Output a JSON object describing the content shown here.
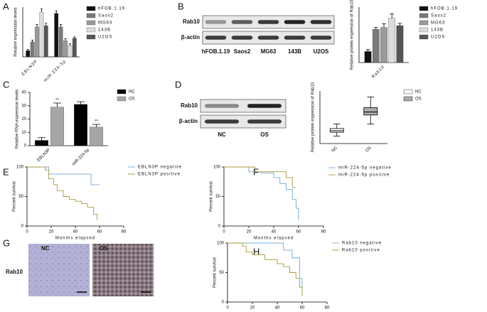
{
  "chart_data": [
    {
      "type": "bar",
      "label": "A",
      "y_label": "Relative expression levels",
      "categories": [
        "EBLN3P",
        "miR-224-5p"
      ],
      "ylim": [
        0,
        4
      ],
      "series": [
        {
          "name": "hFOB.1.19",
          "color": "#111111",
          "values": [
            0.5,
            3.5
          ],
          "errors": [
            0.1,
            0.2
          ]
        },
        {
          "name": "Saos2",
          "color": "#7a7a7a",
          "values": [
            1.2,
            2.4
          ],
          "errors": [
            0.15,
            0.2
          ]
        },
        {
          "name": "MG63",
          "color": "#9a9a9a",
          "values": [
            2.4,
            1.3
          ],
          "errors": [
            0.2,
            0.15
          ]
        },
        {
          "name": "143B",
          "color": "#dcdcdc",
          "values": [
            3.6,
            0.9
          ],
          "errors": [
            0.25,
            0.15
          ]
        },
        {
          "name": "U2OS",
          "color": "#555555",
          "values": [
            2.5,
            1.5
          ],
          "errors": [
            0.2,
            0.1
          ]
        }
      ]
    },
    {
      "type": "bar",
      "label": "B",
      "y_label": "Relative protein expression of Rab10",
      "categories": [
        "Rab10"
      ],
      "ylim": [
        0,
        1.5
      ],
      "series": [
        {
          "name": "hFOB.1.19",
          "color": "#111111",
          "values": [
            0.3
          ],
          "errors": [
            0.05
          ]
        },
        {
          "name": "Saos2",
          "color": "#7a7a7a",
          "values": [
            0.9
          ],
          "errors": [
            0.05
          ]
        },
        {
          "name": "MG63",
          "color": "#9a9a9a",
          "values": [
            0.95
          ],
          "errors": [
            0.1
          ]
        },
        {
          "name": "143B",
          "color": "#dcdcdc",
          "values": [
            1.2
          ],
          "errors": [
            0.12
          ]
        },
        {
          "name": "U2OS",
          "color": "#555555",
          "values": [
            1.0
          ],
          "errors": [
            0.06
          ]
        }
      ]
    },
    {
      "type": "bar",
      "label": "C",
      "y_label": "Relative RNA expression levels",
      "categories": [
        "EBLN3P",
        "miR-224-5p"
      ],
      "ylim": [
        0,
        40
      ],
      "yticks": [
        0,
        10,
        20,
        30,
        40
      ],
      "series": [
        {
          "name": "NC",
          "color": "#000000",
          "values": [
            4,
            31
          ],
          "errors": [
            2,
            2
          ]
        },
        {
          "name": "OS",
          "color": "#a6a6a6",
          "values": [
            29,
            14
          ],
          "errors": [
            3,
            2
          ],
          "sig_labels": [
            "**",
            "**"
          ]
        }
      ]
    },
    {
      "type": "box",
      "label": "D",
      "y_label": "Relative protein expression of Rab10",
      "categories": [
        "NC",
        "OS"
      ],
      "ylim": [
        0,
        3.5
      ],
      "colors": [
        "#ffffff",
        "#aaaaaa"
      ],
      "boxes": [
        {
          "min": 0.5,
          "q1": 0.75,
          "median": 0.85,
          "q3": 1.0,
          "max": 1.3
        },
        {
          "min": 1.3,
          "q1": 1.9,
          "median": 2.1,
          "q3": 2.4,
          "max": 3.1
        }
      ]
    },
    {
      "type": "km",
      "label": "E",
      "x_label": "Months elapsed",
      "y_label": "Percent survival",
      "xlim": [
        0,
        80
      ],
      "ylim": [
        0,
        100
      ],
      "xticks": [
        0,
        20,
        40,
        60,
        80
      ],
      "yticks": [
        0,
        50,
        100
      ],
      "series": [
        {
          "name": "EBLN3P negative",
          "color": "#6fa8dc",
          "x": [
            0,
            18,
            53,
            60
          ],
          "values": [
            100,
            88,
            70,
            70
          ]
        },
        {
          "name": "EBLN3P positive",
          "color": "#a89a3a",
          "x": [
            0,
            15,
            18,
            22,
            25,
            30,
            35,
            40,
            45,
            50,
            55,
            58
          ],
          "values": [
            100,
            95,
            80,
            70,
            60,
            50,
            45,
            42,
            38,
            32,
            20,
            10
          ]
        }
      ]
    },
    {
      "type": "km",
      "label": "F",
      "x_label": "Months elapsed",
      "y_label": "Percent survival",
      "xlim": [
        0,
        80
      ],
      "ylim": [
        0,
        100
      ],
      "xticks": [
        0,
        20,
        40,
        60,
        80
      ],
      "yticks": [
        0,
        50,
        100
      ],
      "series": [
        {
          "name": "miR-224-5p negative",
          "color": "#6fa8dc",
          "x": [
            0,
            12,
            20,
            30,
            40,
            45,
            50,
            55,
            58,
            60
          ],
          "values": [
            100,
            100,
            92,
            90,
            82,
            72,
            62,
            45,
            30,
            10
          ]
        },
        {
          "name": "miR-224-5p positive",
          "color": "#a89a3a",
          "x": [
            0,
            20,
            25,
            45,
            50,
            55,
            58
          ],
          "values": [
            100,
            100,
            92,
            92,
            82,
            65,
            65
          ]
        }
      ]
    },
    {
      "type": "km",
      "label": "H",
      "x_label": "Months elapsed",
      "y_label": "Percent survival",
      "xlim": [
        0,
        80
      ],
      "ylim": [
        0,
        100
      ],
      "xticks": [
        0,
        20,
        40,
        60,
        80
      ],
      "yticks": [
        0,
        50,
        100
      ],
      "series": [
        {
          "name": "Rab10 negative",
          "color": "#6fa8dc",
          "x": [
            0,
            20,
            45,
            52,
            58,
            60
          ],
          "values": [
            100,
            100,
            88,
            75,
            40,
            15
          ]
        },
        {
          "name": "Rab10 positive",
          "color": "#a89a3a",
          "x": [
            0,
            12,
            15,
            20,
            30,
            40,
            45,
            50,
            55,
            58,
            60
          ],
          "values": [
            100,
            95,
            85,
            80,
            72,
            65,
            60,
            50,
            40,
            25,
            10
          ]
        }
      ]
    }
  ],
  "blots": {
    "B": {
      "rows": [
        "Rab10",
        "β-actin"
      ],
      "lanes": [
        "hFOB.1.19",
        "Saos2",
        "MG63",
        "143B",
        "U2OS"
      ]
    },
    "D": {
      "rows": [
        "Rab10",
        "β-actin"
      ],
      "lanes": [
        "NC",
        "OS"
      ]
    }
  },
  "images": {
    "label": "G",
    "row": "Rab10",
    "columns": [
      "NC",
      "OS"
    ]
  }
}
